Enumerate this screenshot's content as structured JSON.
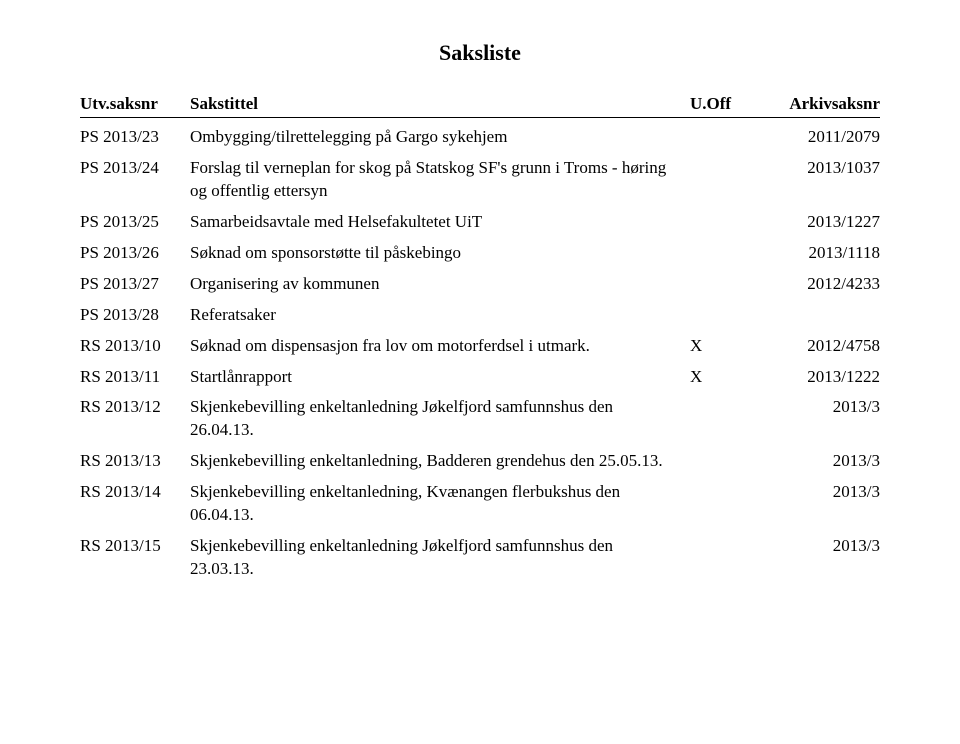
{
  "title": "Saksliste",
  "headers": {
    "saksnr": "Utv.saksnr",
    "tittel": "Sakstittel",
    "uoff": "U.Off",
    "arkiv": "Arkivsaksnr"
  },
  "rows": [
    {
      "saksnr": "PS 2013/23",
      "tittel": "Ombygging/tilrettelegging på Gargo sykehjem",
      "uoff": "",
      "arkiv": "2011/2079"
    },
    {
      "saksnr": "PS 2013/24",
      "tittel": "Forslag til verneplan for skog på Statskog SF's grunn i Troms - høring og offentlig ettersyn",
      "uoff": "",
      "arkiv": "2013/1037"
    },
    {
      "saksnr": "PS 2013/25",
      "tittel": "Samarbeidsavtale med Helsefakultetet UiT",
      "uoff": "",
      "arkiv": "2013/1227"
    },
    {
      "saksnr": "PS 2013/26",
      "tittel": "Søknad om sponsorstøtte til påskebingo",
      "uoff": "",
      "arkiv": "2013/1118"
    },
    {
      "saksnr": "PS 2013/27",
      "tittel": "Organisering av kommunen",
      "uoff": "",
      "arkiv": "2012/4233"
    },
    {
      "saksnr": "PS 2013/28",
      "tittel": "Referatsaker",
      "uoff": "",
      "arkiv": ""
    },
    {
      "saksnr": "RS 2013/10",
      "tittel": "Søknad om dispensasjon fra lov om motorferdsel i utmark.",
      "uoff": "X",
      "arkiv": "2012/4758"
    },
    {
      "saksnr": "RS 2013/11",
      "tittel": "Startlånrapport",
      "uoff": "X",
      "arkiv": "2013/1222"
    },
    {
      "saksnr": "RS 2013/12",
      "tittel": "Skjenkebevilling enkeltanledning Jøkelfjord samfunnshus den 26.04.13.",
      "uoff": "",
      "arkiv": "2013/3"
    },
    {
      "saksnr": "RS 2013/13",
      "tittel": "Skjenkebevilling enkeltanledning, Badderen grendehus den 25.05.13.",
      "uoff": "",
      "arkiv": "2013/3"
    },
    {
      "saksnr": "RS 2013/14",
      "tittel": "Skjenkebevilling enkeltanledning, Kvænangen flerbukshus den 06.04.13.",
      "uoff": "",
      "arkiv": "2013/3"
    },
    {
      "saksnr": "RS 2013/15",
      "tittel": "Skjenkebevilling enkeltanledning Jøkelfjord samfunnshus den 23.03.13.",
      "uoff": "",
      "arkiv": "2013/3"
    }
  ]
}
